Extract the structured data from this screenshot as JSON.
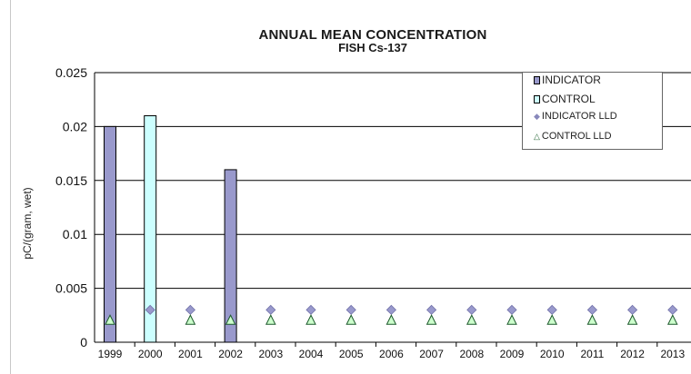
{
  "chart_data": {
    "type": "bar",
    "title": "ANNUAL  MEAN CONCENTRATION",
    "subtitle": "FISH Cs-137",
    "ylabel": "pC/(gram, wet)",
    "xlabel": "",
    "ylim": [
      0,
      0.025
    ],
    "yticks": [
      "0",
      "0.005",
      "0.01",
      "0.015",
      "0.02",
      "0.025"
    ],
    "grid": true,
    "legend_position": "top-right",
    "categories": [
      "1999",
      "2000",
      "2001",
      "2002",
      "2003",
      "2004",
      "2005",
      "2006",
      "2007",
      "2008",
      "2009",
      "2010",
      "2011",
      "2012",
      "2013"
    ],
    "series": [
      {
        "name": "INDICATOR",
        "kind": "bar",
        "color": "#9999cc",
        "values": [
          0.02,
          null,
          null,
          0.016,
          null,
          null,
          null,
          null,
          null,
          null,
          null,
          null,
          null,
          null,
          null
        ]
      },
      {
        "name": "CONTROL",
        "kind": "bar",
        "color": "#ccffff",
        "values": [
          null,
          0.021,
          null,
          null,
          null,
          null,
          null,
          null,
          null,
          null,
          null,
          null,
          null,
          null,
          null
        ]
      },
      {
        "name": "INDICATOR LLD",
        "kind": "marker",
        "marker": "diamond",
        "color": "#9999cc",
        "values": [
          null,
          0.003,
          0.003,
          null,
          0.003,
          0.003,
          0.003,
          0.003,
          0.003,
          0.003,
          0.003,
          0.003,
          0.003,
          0.003,
          0.003
        ]
      },
      {
        "name": "CONTROL LLD",
        "kind": "marker",
        "marker": "triangle",
        "color": "#ccffcc",
        "values": [
          0.002,
          null,
          0.002,
          0.002,
          0.002,
          0.002,
          0.002,
          0.002,
          0.002,
          0.002,
          0.002,
          0.002,
          0.002,
          0.002,
          0.002
        ]
      }
    ]
  }
}
